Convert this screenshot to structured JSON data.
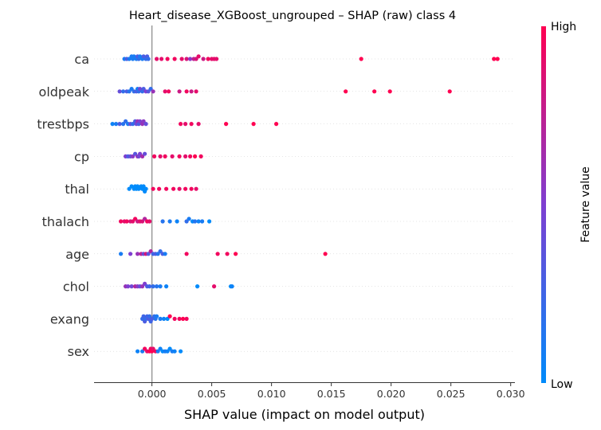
{
  "chart_data": {
    "type": "scatter",
    "title": "Heart_disease_XGBoost_ungrouped – SHAP (raw) class 4",
    "xlabel": "SHAP value (impact on model output)",
    "xlim": [
      -0.0048,
      0.0304
    ],
    "xticks": [
      {
        "v": 0.0,
        "label": "0.000"
      },
      {
        "v": 0.005,
        "label": "0.005"
      },
      {
        "v": 0.01,
        "label": "0.010"
      },
      {
        "v": 0.015,
        "label": "0.015"
      },
      {
        "v": 0.02,
        "label": "0.020"
      },
      {
        "v": 0.025,
        "label": "0.025"
      },
      {
        "v": 0.03,
        "label": "0.030"
      }
    ],
    "colorbar": {
      "label": "Feature value",
      "high": "High",
      "low": "Low",
      "colors": [
        "#ff0051",
        "#7e3fd1",
        "#008bfb"
      ]
    },
    "features": [
      {
        "name": "ca",
        "points": [
          [
            -0.0023,
            0.1
          ],
          [
            -0.0021,
            0.3
          ],
          [
            -0.0019,
            0.1
          ],
          [
            -0.0017,
            0.1
          ],
          [
            -0.0016,
            0.1
          ],
          [
            -0.0015,
            0.1
          ],
          [
            -0.0013,
            0.1
          ],
          [
            -0.0012,
            0.3
          ],
          [
            -0.0011,
            0.2
          ],
          [
            -0.001,
            0.1
          ],
          [
            -0.0008,
            0.1
          ],
          [
            -0.0007,
            0.3
          ],
          [
            -0.0005,
            0.2
          ],
          [
            -0.0004,
            0.3
          ],
          [
            -0.0003,
            0.2
          ],
          [
            0.0004,
            0.9
          ],
          [
            0.0008,
            0.9
          ],
          [
            0.0013,
            0.95
          ],
          [
            0.0019,
            0.95
          ],
          [
            0.0025,
            0.9
          ],
          [
            0.0029,
            0.85
          ],
          [
            0.0032,
            0.55
          ],
          [
            0.0035,
            0.75
          ],
          [
            0.0037,
            0.85
          ],
          [
            0.0039,
            0.9
          ],
          [
            0.0043,
            0.8
          ],
          [
            0.0047,
            0.95
          ],
          [
            0.005,
            0.9
          ],
          [
            0.0052,
            0.9
          ],
          [
            0.0054,
            0.9
          ],
          [
            0.0175,
            1.0
          ],
          [
            0.0286,
            1.0
          ],
          [
            0.0289,
            1.0
          ]
        ]
      },
      {
        "name": "oldpeak",
        "points": [
          [
            -0.0027,
            0.4
          ],
          [
            -0.0024,
            0.2
          ],
          [
            -0.0021,
            0.3
          ],
          [
            -0.0019,
            0.15
          ],
          [
            -0.0017,
            0.1
          ],
          [
            -0.0015,
            0.2
          ],
          [
            -0.0013,
            0.3
          ],
          [
            -0.0012,
            0.1
          ],
          [
            -0.0011,
            0.2
          ],
          [
            -0.001,
            0.45
          ],
          [
            -0.0008,
            0.2
          ],
          [
            -0.0007,
            0.3
          ],
          [
            -0.0005,
            0.5
          ],
          [
            -0.0003,
            0.35
          ],
          [
            -0.0001,
            0.2
          ],
          [
            0.0001,
            0.6
          ],
          [
            0.0011,
            0.9
          ],
          [
            0.0014,
            0.95
          ],
          [
            0.0023,
            0.8
          ],
          [
            0.0029,
            0.95
          ],
          [
            0.0033,
            0.8
          ],
          [
            0.0037,
            0.9
          ],
          [
            0.0162,
            1.0
          ],
          [
            0.0186,
            1.0
          ],
          [
            0.0199,
            1.0
          ],
          [
            0.0249,
            1.0
          ]
        ]
      },
      {
        "name": "trestbps",
        "points": [
          [
            -0.0033,
            0.05
          ],
          [
            -0.003,
            0.1
          ],
          [
            -0.0027,
            0.3
          ],
          [
            -0.0024,
            0.15
          ],
          [
            -0.0022,
            0.2
          ],
          [
            -0.002,
            0.1
          ],
          [
            -0.0018,
            0.4
          ],
          [
            -0.0016,
            0.2
          ],
          [
            -0.0014,
            0.3
          ],
          [
            -0.0013,
            0.45
          ],
          [
            -0.0012,
            0.6
          ],
          [
            -0.0011,
            0.3
          ],
          [
            -0.001,
            0.5
          ],
          [
            -0.0008,
            0.6
          ],
          [
            -0.0007,
            0.55
          ],
          [
            -0.0005,
            0.4
          ],
          [
            0.0024,
            0.95
          ],
          [
            0.0028,
            0.9
          ],
          [
            0.0033,
            0.95
          ],
          [
            0.0039,
            0.9
          ],
          [
            0.0062,
            1.0
          ],
          [
            0.0085,
            1.0
          ],
          [
            0.0104,
            1.0
          ]
        ]
      },
      {
        "name": "cp",
        "points": [
          [
            -0.0022,
            0.5
          ],
          [
            -0.002,
            0.3
          ],
          [
            -0.0018,
            0.4
          ],
          [
            -0.0016,
            0.55
          ],
          [
            -0.0014,
            0.35
          ],
          [
            -0.0012,
            0.6
          ],
          [
            -0.0011,
            0.45
          ],
          [
            -0.001,
            0.5
          ],
          [
            -0.0008,
            0.65
          ],
          [
            -0.0006,
            0.4
          ],
          [
            0.0002,
            0.95
          ],
          [
            0.0007,
            0.9
          ],
          [
            0.0011,
            0.95
          ],
          [
            0.0017,
            0.9
          ],
          [
            0.0023,
            0.95
          ],
          [
            0.0028,
            0.9
          ],
          [
            0.0032,
            0.95
          ],
          [
            0.0036,
            1.0
          ],
          [
            0.0041,
            0.95
          ]
        ]
      },
      {
        "name": "thal",
        "points": [
          [
            -0.0019,
            0.0
          ],
          [
            -0.0017,
            0.0
          ],
          [
            -0.0015,
            0.0
          ],
          [
            -0.0014,
            0.0
          ],
          [
            -0.0013,
            0.0
          ],
          [
            -0.0012,
            0.0
          ],
          [
            -0.0011,
            0.0
          ],
          [
            -0.0009,
            0.0
          ],
          [
            -0.0008,
            0.0
          ],
          [
            -0.0007,
            0.0
          ],
          [
            -0.0006,
            0.0
          ],
          [
            -0.0005,
            0.0
          ],
          [
            0.0001,
            0.95
          ],
          [
            0.0006,
            0.95
          ],
          [
            0.0012,
            0.95
          ],
          [
            0.0018,
            0.95
          ],
          [
            0.0023,
            0.9
          ],
          [
            0.0028,
            0.95
          ],
          [
            0.0033,
            0.95
          ],
          [
            0.0037,
            0.9
          ]
        ]
      },
      {
        "name": "thalach",
        "points": [
          [
            -0.0026,
            0.95
          ],
          [
            -0.0023,
            0.9
          ],
          [
            -0.0021,
            0.95
          ],
          [
            -0.0018,
            0.85
          ],
          [
            -0.0016,
            0.9
          ],
          [
            -0.0014,
            0.95
          ],
          [
            -0.0012,
            0.8
          ],
          [
            -0.001,
            0.9
          ],
          [
            -0.0008,
            0.85
          ],
          [
            -0.0006,
            0.7
          ],
          [
            -0.0004,
            0.95
          ],
          [
            -0.0002,
            0.9
          ],
          [
            0.0009,
            0.15
          ],
          [
            0.0015,
            0.1
          ],
          [
            0.0021,
            0.05
          ],
          [
            0.0029,
            0.2
          ],
          [
            0.0031,
            0.1
          ],
          [
            0.0034,
            0.0
          ],
          [
            0.0036,
            0.15
          ],
          [
            0.0039,
            0.05
          ],
          [
            0.0042,
            0.1
          ],
          [
            0.0048,
            0.0
          ]
        ]
      },
      {
        "name": "age",
        "points": [
          [
            -0.0026,
            0.1
          ],
          [
            -0.0018,
            0.5
          ],
          [
            -0.0012,
            0.6
          ],
          [
            -0.0009,
            0.75
          ],
          [
            -0.0007,
            0.4
          ],
          [
            -0.0005,
            0.85
          ],
          [
            -0.0003,
            0.35
          ],
          [
            -0.0001,
            0.7
          ],
          [
            0.0001,
            0.25
          ],
          [
            0.0003,
            0.3
          ],
          [
            0.0005,
            0.15
          ],
          [
            0.0007,
            0.2
          ],
          [
            0.0009,
            0.3
          ],
          [
            0.0011,
            0.1
          ],
          [
            0.0029,
            0.95
          ],
          [
            0.0055,
            0.95
          ],
          [
            0.0063,
            0.95
          ],
          [
            0.007,
            1.0
          ],
          [
            0.0145,
            1.0
          ]
        ]
      },
      {
        "name": "chol",
        "points": [
          [
            -0.0022,
            0.6
          ],
          [
            -0.002,
            0.5
          ],
          [
            -0.0017,
            0.45
          ],
          [
            -0.0014,
            0.7
          ],
          [
            -0.0012,
            0.55
          ],
          [
            -0.001,
            0.4
          ],
          [
            -0.0008,
            0.6
          ],
          [
            -0.0006,
            0.5
          ],
          [
            -0.0004,
            0.3
          ],
          [
            -0.0002,
            0.25
          ],
          [
            0.0001,
            0.2
          ],
          [
            0.0004,
            0.15
          ],
          [
            0.0007,
            0.1
          ],
          [
            0.0012,
            0.05
          ],
          [
            0.0038,
            0.0
          ],
          [
            0.0052,
            0.9
          ],
          [
            0.0066,
            0.0
          ],
          [
            0.0067,
            0.05
          ]
        ]
      },
      {
        "name": "exang",
        "points": [
          [
            -0.0008,
            0.2
          ],
          [
            -0.0007,
            0.25
          ],
          [
            -0.0006,
            0.3
          ],
          [
            -0.0005,
            0.2
          ],
          [
            -0.0004,
            0.25
          ],
          [
            -0.0003,
            0.3
          ],
          [
            -0.0002,
            0.2
          ],
          [
            -0.0001,
            0.25
          ],
          [
            0.0,
            0.3
          ],
          [
            0.0002,
            0.2
          ],
          [
            0.0003,
            0.15
          ],
          [
            0.0004,
            0.1
          ],
          [
            0.0007,
            0.1
          ],
          [
            0.001,
            0.05
          ],
          [
            0.0013,
            0.0
          ],
          [
            0.0015,
            1.0
          ],
          [
            0.0019,
            0.95
          ],
          [
            0.0023,
            0.95
          ],
          [
            0.0026,
            1.0
          ],
          [
            0.0029,
            0.95
          ]
        ]
      },
      {
        "name": "sex",
        "points": [
          [
            -0.0012,
            0.05
          ],
          [
            -0.0008,
            0.1
          ],
          [
            -0.0006,
            0.95
          ],
          [
            -0.0004,
            0.9
          ],
          [
            -0.0002,
            1.0
          ],
          [
            -0.0001,
            0.95
          ],
          [
            0.0,
            1.0
          ],
          [
            0.0001,
            0.9
          ],
          [
            0.0003,
            0.95
          ],
          [
            0.0005,
            0.1
          ],
          [
            0.0007,
            0.05
          ],
          [
            0.0009,
            0.0
          ],
          [
            0.0011,
            0.1
          ],
          [
            0.0013,
            0.05
          ],
          [
            0.0015,
            0.0
          ],
          [
            0.0017,
            0.1
          ],
          [
            0.0019,
            0.05
          ],
          [
            0.0024,
            0.0
          ]
        ]
      }
    ]
  }
}
